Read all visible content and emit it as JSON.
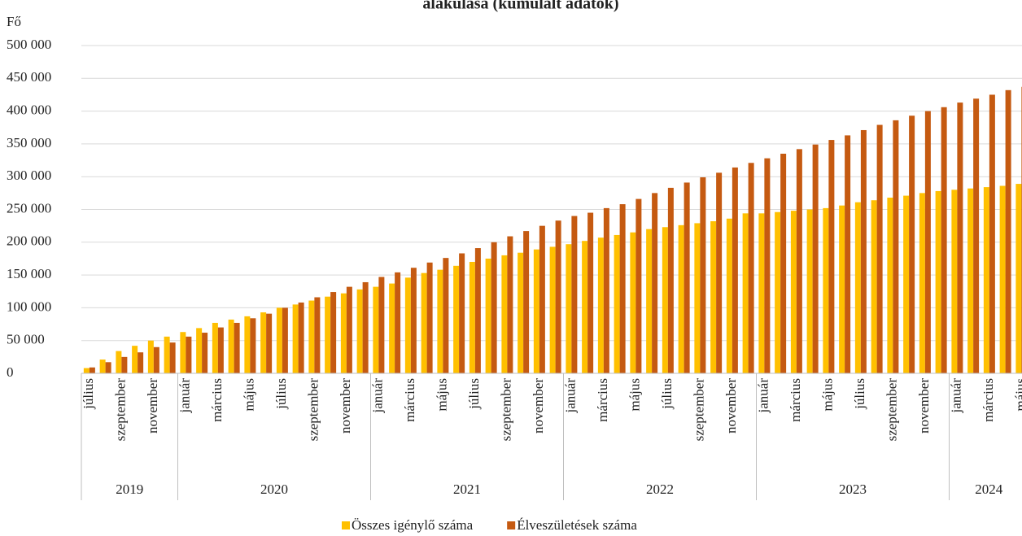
{
  "chart_data": {
    "type": "bar",
    "title": "alakulása (kumulált adatok)",
    "y_label": "Fő",
    "categories": [
      "július",
      null,
      "szeptember",
      null,
      "november",
      null,
      "január",
      null,
      "március",
      null,
      "május",
      null,
      "július",
      null,
      "szeptember",
      null,
      "november",
      null,
      "január",
      null,
      "március",
      null,
      "május",
      null,
      "július",
      null,
      "szeptember",
      null,
      "november",
      null,
      "január",
      null,
      "március",
      null,
      "május",
      null,
      "július",
      null,
      "szeptember",
      null,
      "november",
      null,
      "január",
      null,
      "március",
      null,
      "május",
      null,
      "július",
      null,
      "szeptember",
      null,
      "november",
      null,
      "január",
      null,
      "március",
      null,
      "május"
    ],
    "category_groups": [
      {
        "label": "2019",
        "size": 6
      },
      {
        "label": "2020",
        "size": 12
      },
      {
        "label": "2021",
        "size": 12
      },
      {
        "label": "2022",
        "size": 12
      },
      {
        "label": "2023",
        "size": 12
      },
      {
        "label": "2024",
        "size": 5
      }
    ],
    "series": [
      {
        "name": "Összes igénylő száma",
        "color": "#ffc000",
        "values": [
          8000,
          21000,
          34000,
          42000,
          50000,
          56000,
          63000,
          69000,
          77000,
          82000,
          87000,
          93000,
          100000,
          105000,
          111000,
          117000,
          122000,
          128000,
          132000,
          137000,
          146000,
          153000,
          158000,
          164000,
          170000,
          175000,
          180000,
          184000,
          189000,
          193000,
          197000,
          202000,
          207000,
          211000,
          215000,
          220000,
          223000,
          226000,
          229000,
          232000,
          236000,
          244000,
          244000,
          246000,
          248000,
          250000,
          252000,
          256000,
          261000,
          264000,
          268000,
          271000,
          275000,
          278000,
          280000,
          282000,
          284000,
          286000,
          289000
        ]
      },
      {
        "name": "Élveszületések száma",
        "color": "#c55a11",
        "values": [
          9000,
          17000,
          25000,
          32000,
          40000,
          47000,
          56000,
          62000,
          70000,
          77000,
          84000,
          91000,
          100000,
          108000,
          116000,
          124000,
          132000,
          139000,
          147000,
          154000,
          161000,
          169000,
          176000,
          183000,
          191000,
          200000,
          209000,
          217000,
          225000,
          233000,
          240000,
          245000,
          252000,
          258000,
          266000,
          275000,
          283000,
          291000,
          299000,
          306000,
          314000,
          321000,
          328000,
          335000,
          342000,
          349000,
          356000,
          363000,
          371000,
          379000,
          386000,
          393000,
          400000,
          406000,
          413000,
          419000,
          425000,
          432000,
          437000
        ]
      }
    ],
    "ylim": [
      0,
      500000
    ],
    "yticks": [
      0,
      {
        "value": 50000,
        "label": "50 000"
      },
      {
        "value": 100000,
        "label": "100 000"
      },
      {
        "value": 150000,
        "label": "150 000"
      },
      {
        "value": 200000,
        "label": "200 000"
      },
      {
        "value": 250000,
        "label": "250 000"
      },
      {
        "value": 300000,
        "label": "300 000"
      },
      {
        "value": 350000,
        "label": "350 000"
      },
      {
        "value": 400000,
        "label": "400 000"
      },
      {
        "value": 450000,
        "label": "450 000"
      },
      {
        "value": 500000,
        "label": "500 000"
      }
    ],
    "grid": true
  }
}
